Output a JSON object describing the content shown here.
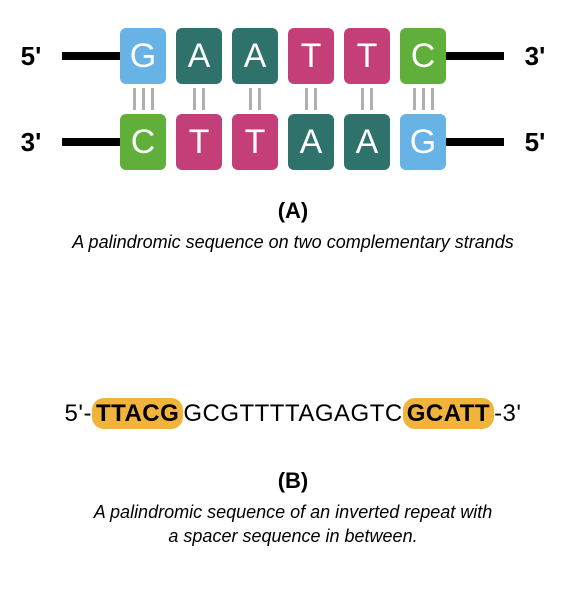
{
  "panelA": {
    "top_left_label": "5'",
    "top_right_label": "3'",
    "bottom_left_label": "3'",
    "bottom_right_label": "5'",
    "top_bases": [
      {
        "letter": "G",
        "color": "#67b3e6"
      },
      {
        "letter": "A",
        "color": "#2f726c"
      },
      {
        "letter": "A",
        "color": "#2f726c"
      },
      {
        "letter": "T",
        "color": "#c43e78"
      },
      {
        "letter": "T",
        "color": "#c43e78"
      },
      {
        "letter": "C",
        "color": "#5faf3a"
      }
    ],
    "bottom_bases": [
      {
        "letter": "C",
        "color": "#5faf3a"
      },
      {
        "letter": "T",
        "color": "#c43e78"
      },
      {
        "letter": "T",
        "color": "#c43e78"
      },
      {
        "letter": "A",
        "color": "#2f726c"
      },
      {
        "letter": "A",
        "color": "#2f726c"
      },
      {
        "letter": "G",
        "color": "#67b3e6"
      }
    ],
    "hydrogen_bonds": [
      3,
      2,
      2,
      2,
      2,
      3
    ],
    "strand_color": "#000000",
    "bond_color": "#aeb0af",
    "label": "(A)",
    "caption": "A palindromic sequence on two complementary strands"
  },
  "panelB": {
    "prefix": "5'-",
    "highlight_left": "TTACG",
    "middle": "GCGTTTTAGAGTC",
    "highlight_right": "GCATT",
    "suffix": "-3'",
    "highlight_color": "#f0b33b",
    "label": "(B)",
    "caption_line1": "A palindromic sequence of an inverted repeat with",
    "caption_line2": "a spacer sequence in between."
  },
  "style": {
    "end_label_fontsize": 26,
    "base_fontsize": 34,
    "caption_fontsize": 18,
    "panel_label_fontsize": 22,
    "seq_fontsize": 24,
    "background": "#ffffff"
  }
}
